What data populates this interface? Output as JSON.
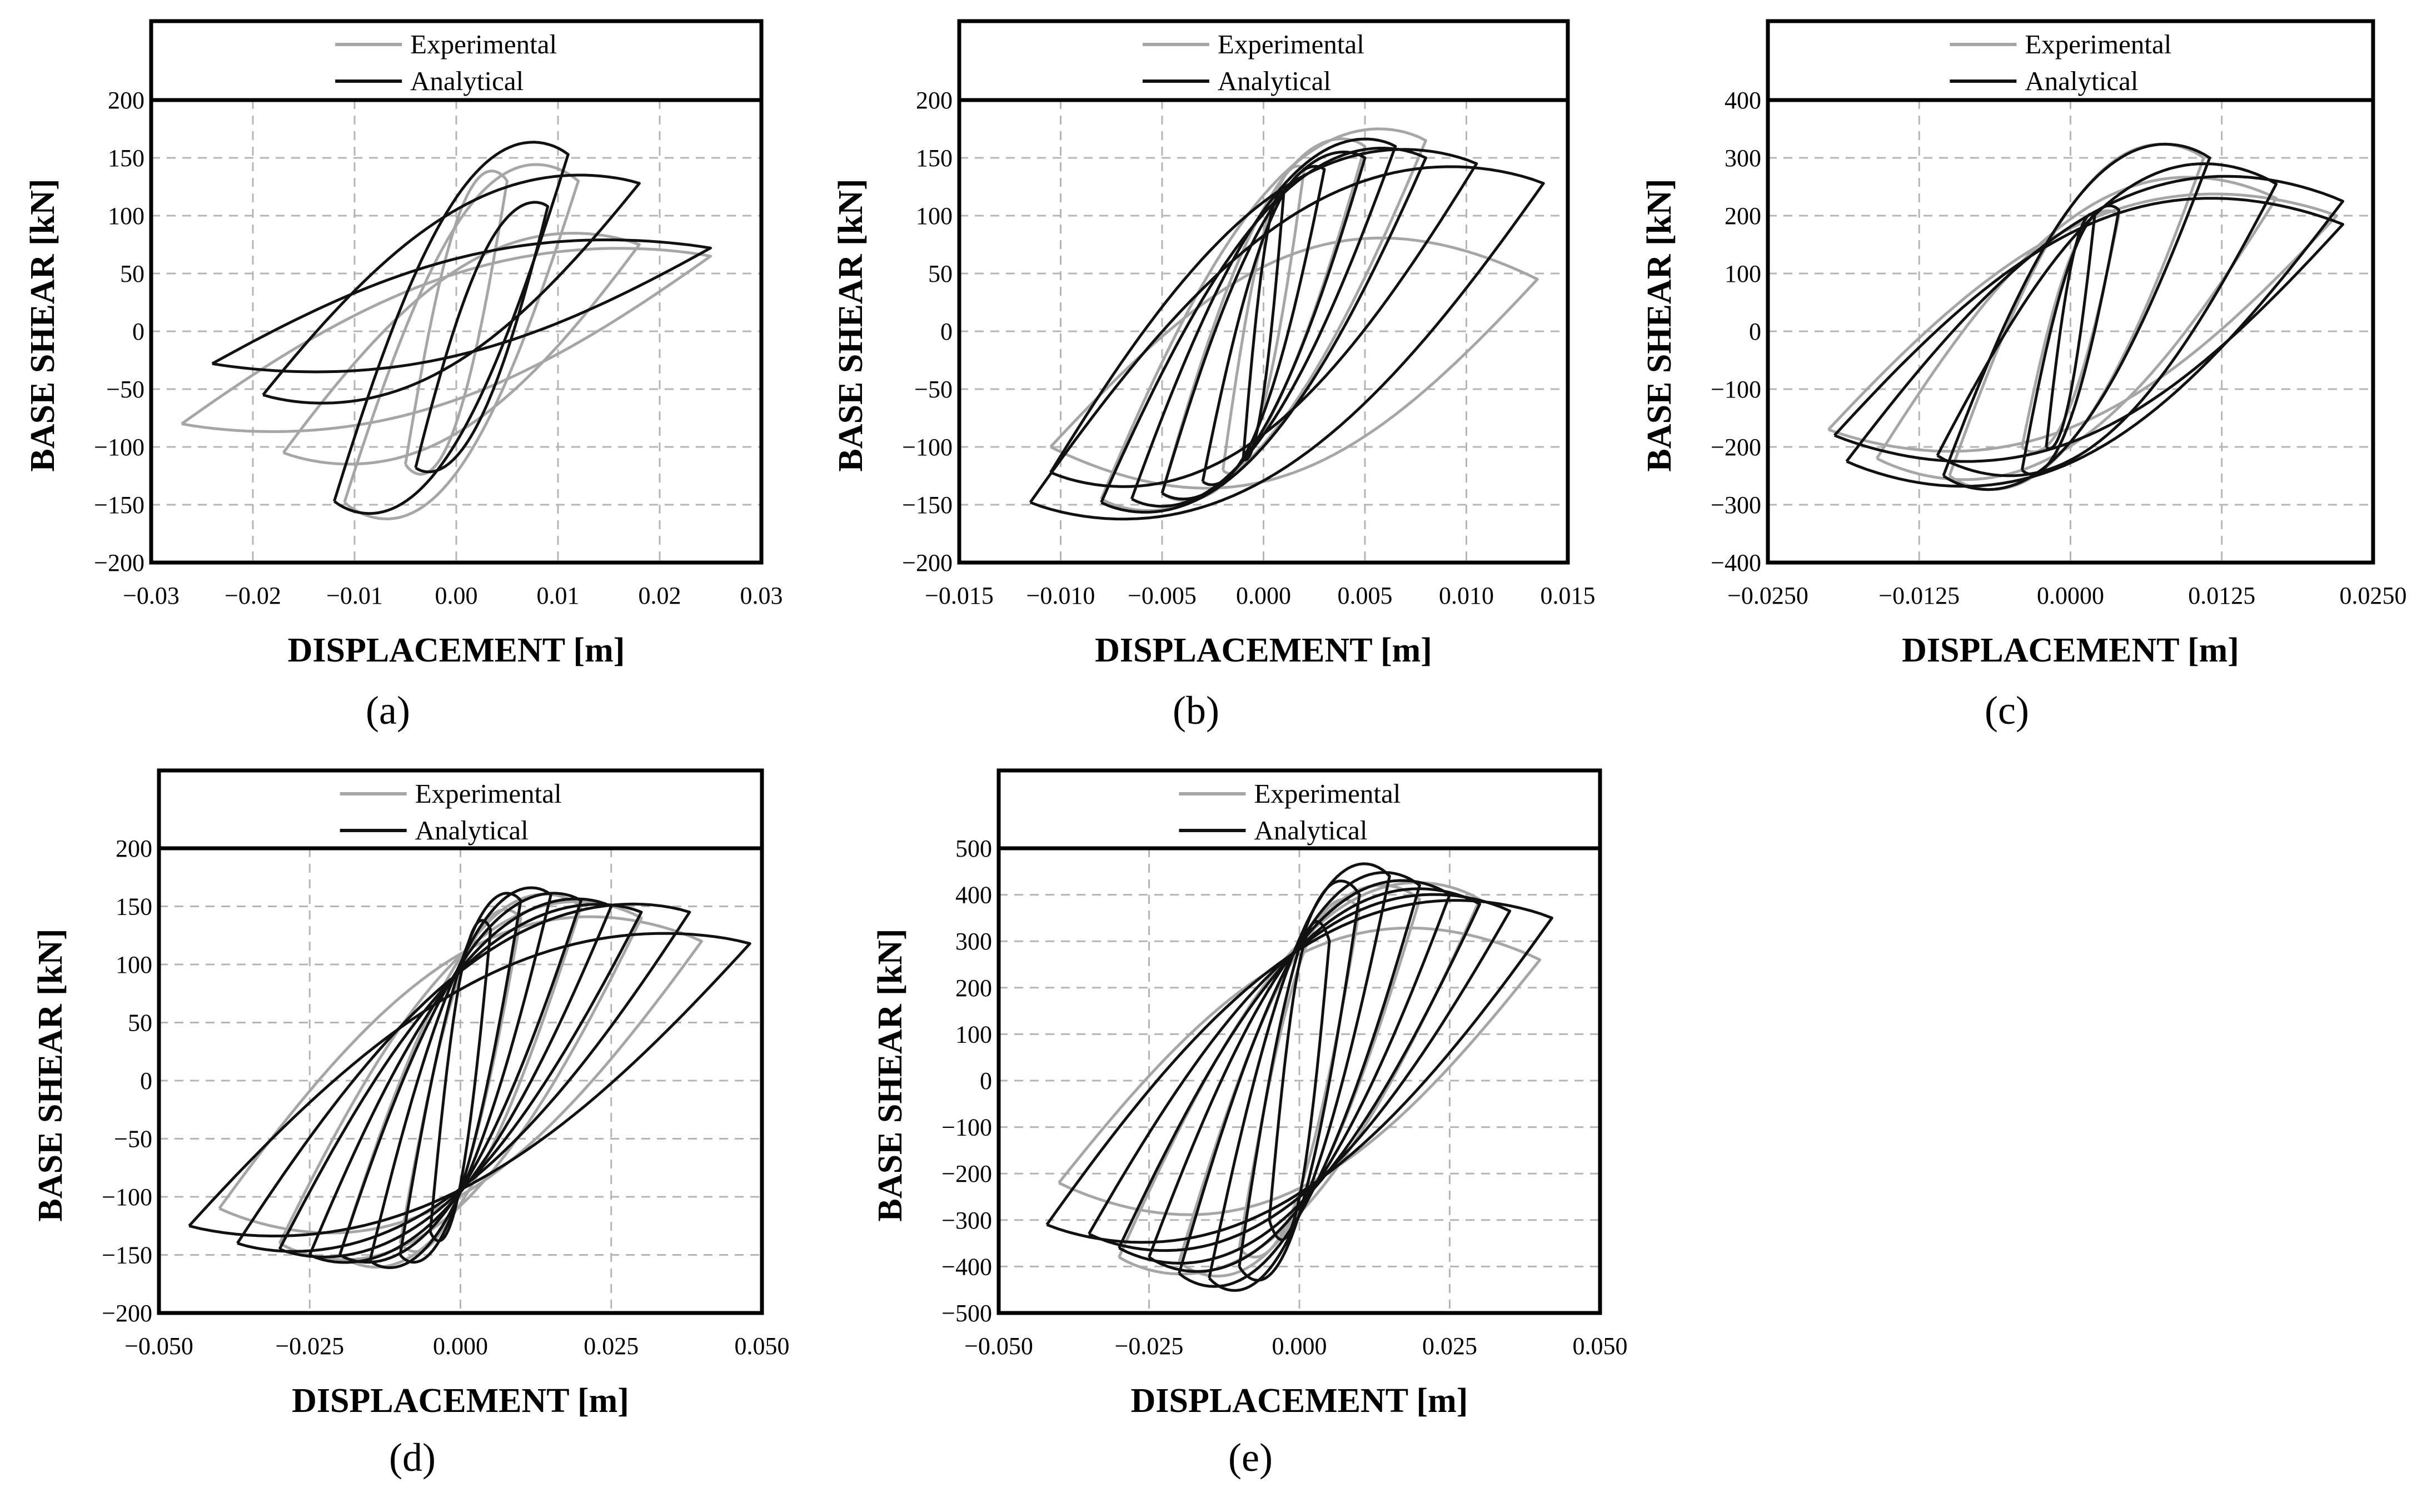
{
  "figure": {
    "labels": {
      "a": "(a)",
      "b": "(b)",
      "c": "(c)",
      "d": "(d)",
      "e": "(e)"
    }
  },
  "chart_data": [
    {
      "id": "a",
      "type": "line",
      "xlabel": "DISPLACEMENT [m]",
      "ylabel": "BASE SHEAR [kN]",
      "xlim": [
        -0.03,
        0.03
      ],
      "ylim": [
        -200,
        200
      ],
      "xticks": [
        -0.03,
        -0.02,
        -0.01,
        0.0,
        0.01,
        0.02,
        0.03
      ],
      "xtick_labels": [
        "−0.03",
        "−0.02",
        "−0.01",
        "0.00",
        "0.01",
        "0.02",
        "0.03"
      ],
      "yticks": [
        -200,
        -150,
        -100,
        -50,
        0,
        50,
        100,
        150,
        200
      ],
      "ytick_labels": [
        "−200",
        "−150",
        "−100",
        "−50",
        "0",
        "50",
        "100",
        "150",
        "200"
      ],
      "grid": true,
      "legend": [
        "Experimental",
        "Analytical"
      ],
      "series": [
        {
          "name": "Experimental",
          "cycles": [
            {
              "dp": 0.005,
              "fp": 130,
              "dn": -0.005,
              "fn": -115,
              "w": 45
            },
            {
              "dp": 0.012,
              "fp": 130,
              "dn": -0.011,
              "fn": -148,
              "w": 60
            },
            {
              "dp": 0.018,
              "fp": 75,
              "dn": -0.017,
              "fn": -105,
              "w": 40
            },
            {
              "dp": 0.025,
              "fp": 65,
              "dn": -0.027,
              "fn": -80,
              "w": 30
            }
          ]
        },
        {
          "name": "Analytical",
          "cycles": [
            {
              "dp": 0.009,
              "fp": 108,
              "dn": -0.004,
              "fn": -118,
              "w": 30
            },
            {
              "dp": 0.011,
              "fp": 153,
              "dn": -0.012,
              "fn": -147,
              "w": 55
            },
            {
              "dp": 0.018,
              "fp": 128,
              "dn": -0.019,
              "fn": -55,
              "w": 35
            },
            {
              "dp": 0.025,
              "fp": 72,
              "dn": -0.024,
              "fn": -28,
              "w": 25
            }
          ]
        }
      ]
    },
    {
      "id": "b",
      "type": "line",
      "xlabel": "DISPLACEMENT [m]",
      "ylabel": "BASE SHEAR [kN]",
      "xlim": [
        -0.015,
        0.015
      ],
      "ylim": [
        -200,
        200
      ],
      "xticks": [
        -0.015,
        -0.01,
        -0.005,
        0.0,
        0.005,
        0.01,
        0.015
      ],
      "xtick_labels": [
        "−0.015",
        "−0.010",
        "−0.005",
        "0.000",
        "0.005",
        "0.010",
        "0.015"
      ],
      "yticks": [
        -200,
        -150,
        -100,
        -50,
        0,
        50,
        100,
        150,
        200
      ],
      "ytick_labels": [
        "−200",
        "−150",
        "−100",
        "−50",
        "0",
        "50",
        "100",
        "150",
        "200"
      ],
      "grid": true,
      "legend": [
        "Experimental",
        "Analytical"
      ],
      "series": [
        {
          "name": "Experimental",
          "cycles": [
            {
              "dp": 0.002,
              "fp": 140,
              "dn": -0.002,
              "fn": -120,
              "w": 30
            },
            {
              "dp": 0.005,
              "fp": 160,
              "dn": -0.005,
              "fn": -140,
              "w": 45
            },
            {
              "dp": 0.008,
              "fp": 165,
              "dn": -0.008,
              "fn": -145,
              "w": 55
            },
            {
              "dp": 0.0135,
              "fp": 45,
              "dn": -0.0105,
              "fn": -100,
              "w": 70
            }
          ]
        },
        {
          "name": "Analytical",
          "cycles": [
            {
              "dp": 0.001,
              "fp": 120,
              "dn": -0.001,
              "fn": -110,
              "w": 20
            },
            {
              "dp": 0.003,
              "fp": 140,
              "dn": -0.003,
              "fn": -130,
              "w": 30
            },
            {
              "dp": 0.005,
              "fp": 150,
              "dn": -0.005,
              "fn": -140,
              "w": 40
            },
            {
              "dp": 0.0065,
              "fp": 160,
              "dn": -0.0065,
              "fn": -145,
              "w": 45
            },
            {
              "dp": 0.008,
              "fp": 150,
              "dn": -0.008,
              "fn": -148,
              "w": 50
            },
            {
              "dp": 0.0105,
              "fp": 145,
              "dn": -0.0105,
              "fn": -122,
              "w": 55
            },
            {
              "dp": 0.0138,
              "fp": 128,
              "dn": -0.0115,
              "fn": -148,
              "w": 60
            }
          ]
        }
      ]
    },
    {
      "id": "c",
      "type": "line",
      "xlabel": "DISPLACEMENT [m]",
      "ylabel": "BASE SHEAR [kN]",
      "xlim": [
        -0.025,
        0.025
      ],
      "ylim": [
        -400,
        400
      ],
      "xticks": [
        -0.025,
        -0.0125,
        0.0,
        0.0125,
        0.025
      ],
      "xtick_labels": [
        "−0.0250",
        "−0.0125",
        "0.0000",
        "0.0125",
        "0.0250"
      ],
      "yticks": [
        -400,
        -300,
        -200,
        -100,
        0,
        100,
        200,
        300,
        400
      ],
      "ytick_labels": [
        "−400",
        "−300",
        "−200",
        "−100",
        "0",
        "100",
        "200",
        "300",
        "400"
      ],
      "grid": true,
      "legend": [
        "Experimental",
        "Analytical"
      ],
      "series": [
        {
          "name": "Experimental",
          "cycles": [
            {
              "dp": 0.004,
              "fp": 200,
              "dn": -0.004,
              "fn": -200,
              "w": 60
            },
            {
              "dp": 0.011,
              "fp": 300,
              "dn": -0.01,
              "fn": -250,
              "w": 110
            },
            {
              "dp": 0.017,
              "fp": 230,
              "dn": -0.016,
              "fn": -220,
              "w": 120
            },
            {
              "dp": 0.022,
              "fp": 200,
              "dn": -0.02,
              "fn": -170,
              "w": 110
            }
          ]
        },
        {
          "name": "Analytical",
          "cycles": [
            {
              "dp": 0.002,
              "fp": 200,
              "dn": -0.002,
              "fn": -200,
              "w": 40
            },
            {
              "dp": 0.004,
              "fp": 210,
              "dn": -0.004,
              "fn": -240,
              "w": 60
            },
            {
              "dp": 0.0115,
              "fp": 300,
              "dn": -0.0105,
              "fn": -250,
              "w": 110
            },
            {
              "dp": 0.017,
              "fp": 255,
              "dn": -0.011,
              "fn": -215,
              "w": 120
            },
            {
              "dp": 0.0225,
              "fp": 225,
              "dn": -0.0185,
              "fn": -225,
              "w": 130
            },
            {
              "dp": 0.0225,
              "fp": 185,
              "dn": -0.0195,
              "fn": -180,
              "w": 120
            }
          ]
        }
      ]
    },
    {
      "id": "d",
      "type": "line",
      "xlabel": "DISPLACEMENT [m]",
      "ylabel": "BASE SHEAR [kN]",
      "xlim": [
        -0.05,
        0.05
      ],
      "ylim": [
        -200,
        200
      ],
      "xticks": [
        -0.05,
        -0.025,
        0.0,
        0.025,
        0.05
      ],
      "xtick_labels": [
        "−0.050",
        "−0.025",
        "0.000",
        "0.025",
        "0.050"
      ],
      "yticks": [
        -200,
        -150,
        -100,
        -50,
        0,
        50,
        100,
        150,
        200
      ],
      "ytick_labels": [
        "−200",
        "−150",
        "−100",
        "−50",
        "0",
        "50",
        "100",
        "150",
        "200"
      ],
      "grid": true,
      "legend": [
        "Experimental",
        "Analytical"
      ],
      "series": [
        {
          "name": "Experimental",
          "cycles": [
            {
              "dp": 0.01,
              "fp": 140,
              "dn": -0.01,
              "fn": -140,
              "w": 45
            },
            {
              "dp": 0.02,
              "fp": 150,
              "dn": -0.02,
              "fn": -150,
              "w": 55
            },
            {
              "dp": 0.03,
              "fp": 140,
              "dn": -0.03,
              "fn": -140,
              "w": 60
            },
            {
              "dp": 0.04,
              "fp": 120,
              "dn": -0.04,
              "fn": -110,
              "w": 65
            }
          ]
        },
        {
          "name": "Analytical",
          "cycles": [
            {
              "dp": 0.005,
              "fp": 130,
              "dn": -0.005,
              "fn": -130,
              "w": 45
            },
            {
              "dp": 0.01,
              "fp": 155,
              "dn": -0.01,
              "fn": -150,
              "w": 45
            },
            {
              "dp": 0.015,
              "fp": 160,
              "dn": -0.015,
              "fn": -155,
              "w": 45
            },
            {
              "dp": 0.02,
              "fp": 155,
              "dn": -0.02,
              "fn": -150,
              "w": 45
            },
            {
              "dp": 0.025,
              "fp": 150,
              "dn": -0.025,
              "fn": -150,
              "w": 45
            },
            {
              "dp": 0.03,
              "fp": 145,
              "dn": -0.03,
              "fn": -145,
              "w": 45
            },
            {
              "dp": 0.038,
              "fp": 145,
              "dn": -0.037,
              "fn": -140,
              "w": 45
            },
            {
              "dp": 0.048,
              "fp": 118,
              "dn": -0.045,
              "fn": -125,
              "w": 45
            }
          ]
        }
      ]
    },
    {
      "id": "e",
      "type": "line",
      "xlabel": "DISPLACEMENT [m]",
      "ylabel": "BASE SHEAR [kN]",
      "xlim": [
        -0.05,
        0.05
      ],
      "ylim": [
        -500,
        500
      ],
      "xticks": [
        -0.05,
        -0.025,
        0.0,
        0.025,
        0.05
      ],
      "xtick_labels": [
        "−0.050",
        "−0.025",
        "0.000",
        "0.025",
        "0.050"
      ],
      "yticks": [
        -500,
        -400,
        -300,
        -200,
        -100,
        0,
        100,
        200,
        300,
        400,
        500
      ],
      "ytick_labels": [
        "−500",
        "−400",
        "−300",
        "−200",
        "−100",
        "0",
        "100",
        "200",
        "300",
        "400",
        "500"
      ],
      "grid": true,
      "legend": [
        "Experimental",
        "Analytical"
      ],
      "series": [
        {
          "name": "Experimental",
          "cycles": [
            {
              "dp": 0.01,
              "fp": 370,
              "dn": -0.01,
              "fn": -360,
              "w": 120
            },
            {
              "dp": 0.02,
              "fp": 390,
              "dn": -0.02,
              "fn": -390,
              "w": 150
            },
            {
              "dp": 0.03,
              "fp": 390,
              "dn": -0.03,
              "fn": -380,
              "w": 160
            },
            {
              "dp": 0.04,
              "fp": 260,
              "dn": -0.04,
              "fn": -220,
              "w": 170
            }
          ]
        },
        {
          "name": "Analytical",
          "cycles": [
            {
              "dp": 0.005,
              "fp": 300,
              "dn": -0.005,
              "fn": -300,
              "w": 150
            },
            {
              "dp": 0.01,
              "fp": 400,
              "dn": -0.01,
              "fn": -400,
              "w": 150
            },
            {
              "dp": 0.015,
              "fp": 440,
              "dn": -0.015,
              "fn": -425,
              "w": 150
            },
            {
              "dp": 0.02,
              "fp": 420,
              "dn": -0.02,
              "fn": -415,
              "w": 150
            },
            {
              "dp": 0.025,
              "fp": 400,
              "dn": -0.025,
              "fn": -380,
              "w": 150
            },
            {
              "dp": 0.03,
              "fp": 380,
              "dn": -0.03,
              "fn": -360,
              "w": 150
            },
            {
              "dp": 0.035,
              "fp": 365,
              "dn": -0.035,
              "fn": -330,
              "w": 150
            },
            {
              "dp": 0.042,
              "fp": 350,
              "dn": -0.042,
              "fn": -310,
              "w": 150
            }
          ]
        }
      ]
    }
  ]
}
